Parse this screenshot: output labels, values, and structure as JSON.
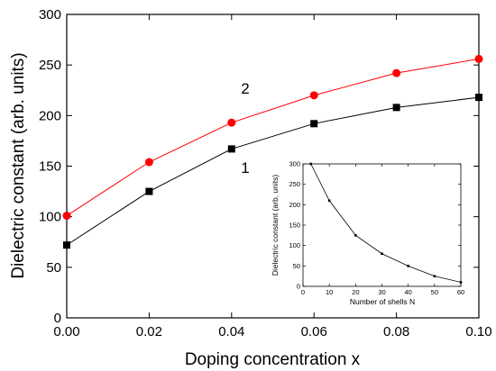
{
  "chart_data": [
    {
      "type": "line",
      "title": "",
      "xlabel": "Doping concentration x",
      "ylabel": "Dielectric constant (arb. units)",
      "xlim": [
        0,
        0.1
      ],
      "ylim": [
        0,
        300
      ],
      "x_ticks": [
        "0.00",
        "0.02",
        "0.04",
        "0.06",
        "0.08",
        "0.10"
      ],
      "y_ticks": [
        "0",
        "50",
        "100",
        "150",
        "200",
        "250",
        "300"
      ],
      "grid": false,
      "legend": "none",
      "series": [
        {
          "label": "1",
          "color": "#000000",
          "marker": "square",
          "x": [
            0,
            0.02,
            0.04,
            0.06,
            0.08,
            0.1
          ],
          "y": [
            72,
            125,
            167,
            192,
            208,
            218
          ]
        },
        {
          "label": "2",
          "color": "#ff0000",
          "marker": "circle",
          "x": [
            0,
            0.02,
            0.04,
            0.06,
            0.08,
            0.1
          ],
          "y": [
            101,
            154,
            193,
            220,
            242,
            256
          ]
        }
      ]
    },
    {
      "type": "line",
      "title": "",
      "xlabel": "Number of shells N",
      "ylabel": "Dielectric constant (arb. units)",
      "xlim": [
        0,
        60
      ],
      "ylim": [
        0,
        300
      ],
      "x_ticks": [
        "0",
        "10",
        "20",
        "30",
        "40",
        "50",
        "60"
      ],
      "y_ticks": [
        "0",
        "50",
        "100",
        "150",
        "200",
        "250",
        "300"
      ],
      "grid": false,
      "series": [
        {
          "color": "#000000",
          "marker": "small-square",
          "x": [
            3,
            10,
            20,
            30,
            40,
            50,
            60
          ],
          "y": [
            300,
            210,
            125,
            80,
            50,
            25,
            10
          ]
        }
      ]
    }
  ]
}
